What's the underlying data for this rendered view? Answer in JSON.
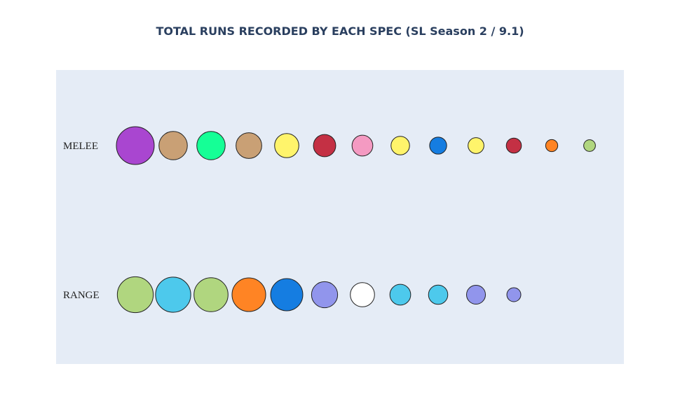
{
  "chart_data": {
    "type": "scatter",
    "title": "TOTAL RUNS RECORDED BY EACH SPEC (SL Season 2 / 9.1)",
    "xlabel": "",
    "ylabel": "",
    "grid": false,
    "plot_background": "#e5ecf6",
    "marker_outline": "#222222",
    "rows": [
      {
        "label": "MELEE",
        "markers": [
          {
            "rank": 1,
            "color": "#a946d0",
            "relative_size": 1.0
          },
          {
            "rank": 2,
            "color": "#c9a075",
            "relative_size": 0.75
          },
          {
            "rank": 3,
            "color": "#15ff96",
            "relative_size": 0.75
          },
          {
            "rank": 4,
            "color": "#c9a075",
            "relative_size": 0.68
          },
          {
            "rank": 5,
            "color": "#fff46b",
            "relative_size": 0.64
          },
          {
            "rank": 6,
            "color": "#c43044",
            "relative_size": 0.59
          },
          {
            "rank": 7,
            "color": "#f49ac2",
            "relative_size": 0.55
          },
          {
            "rank": 8,
            "color": "#fff46b",
            "relative_size": 0.49
          },
          {
            "rank": 9,
            "color": "#157de1",
            "relative_size": 0.45
          },
          {
            "rank": 10,
            "color": "#fff46b",
            "relative_size": 0.42
          },
          {
            "rank": 11,
            "color": "#c43044",
            "relative_size": 0.4
          },
          {
            "rank": 12,
            "color": "#ff8424",
            "relative_size": 0.32
          },
          {
            "rank": 13,
            "color": "#b0d67f",
            "relative_size": 0.31
          }
        ]
      },
      {
        "label": "RANGE",
        "markers": [
          {
            "rank": 1,
            "color": "#b0d67f",
            "relative_size": 0.95
          },
          {
            "rank": 2,
            "color": "#4dc9ec",
            "relative_size": 0.93
          },
          {
            "rank": 3,
            "color": "#b0d67f",
            "relative_size": 0.9
          },
          {
            "rank": 4,
            "color": "#ff8424",
            "relative_size": 0.89
          },
          {
            "rank": 5,
            "color": "#157de1",
            "relative_size": 0.85
          },
          {
            "rank": 6,
            "color": "#9195ec",
            "relative_size": 0.69
          },
          {
            "rank": 7,
            "color": "#ffffff",
            "relative_size": 0.64
          },
          {
            "rank": 8,
            "color": "#4dc9ec",
            "relative_size": 0.55
          },
          {
            "rank": 9,
            "color": "#4dc9ec",
            "relative_size": 0.51
          },
          {
            "rank": 10,
            "color": "#9195ec",
            "relative_size": 0.5
          },
          {
            "rank": 11,
            "color": "#9195ec",
            "relative_size": 0.37
          }
        ]
      }
    ]
  }
}
